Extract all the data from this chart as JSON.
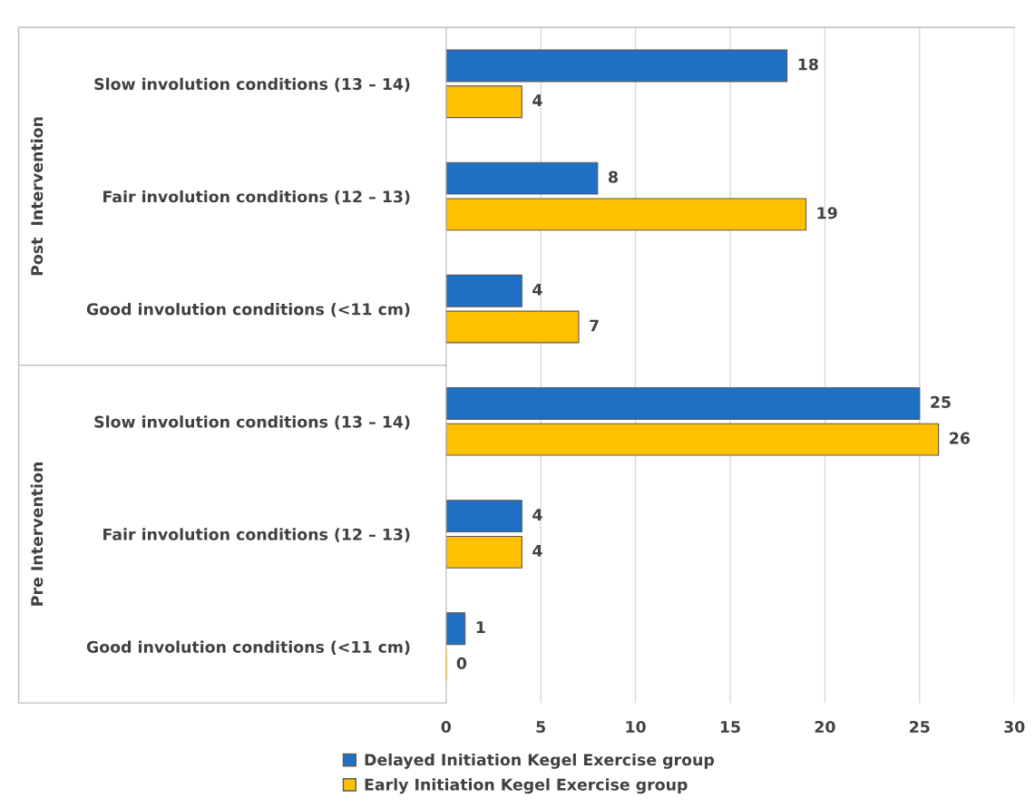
{
  "chart_data": {
    "type": "bar",
    "orientation": "horizontal",
    "categories": [
      "Slow involution conditions (13 – 14)",
      "Fair involution conditions (12 – 13)",
      "Good involution conditions (<11 cm)",
      "Slow involution conditions (13 – 14)",
      "Fair involution conditions (12 – 13)",
      "Good involution conditions (<11 cm)"
    ],
    "series": [
      {
        "name": "Delayed Initiation Kegel Exercise group",
        "color": "#1f6fc5",
        "values": [
          18,
          8,
          4,
          25,
          4,
          1
        ]
      },
      {
        "name": "Early Initiation Kegel Exercise group",
        "color": "#ffc000",
        "values": [
          4,
          19,
          7,
          26,
          4,
          0
        ]
      }
    ],
    "annotations": [
      "Post  Intervention",
      "Pre Intervention"
    ],
    "xlim": [
      0,
      30
    ],
    "xticks": [
      0,
      5,
      10,
      15,
      20,
      25,
      30
    ],
    "grid": "x",
    "data_labels": true,
    "legend": "bottom"
  }
}
